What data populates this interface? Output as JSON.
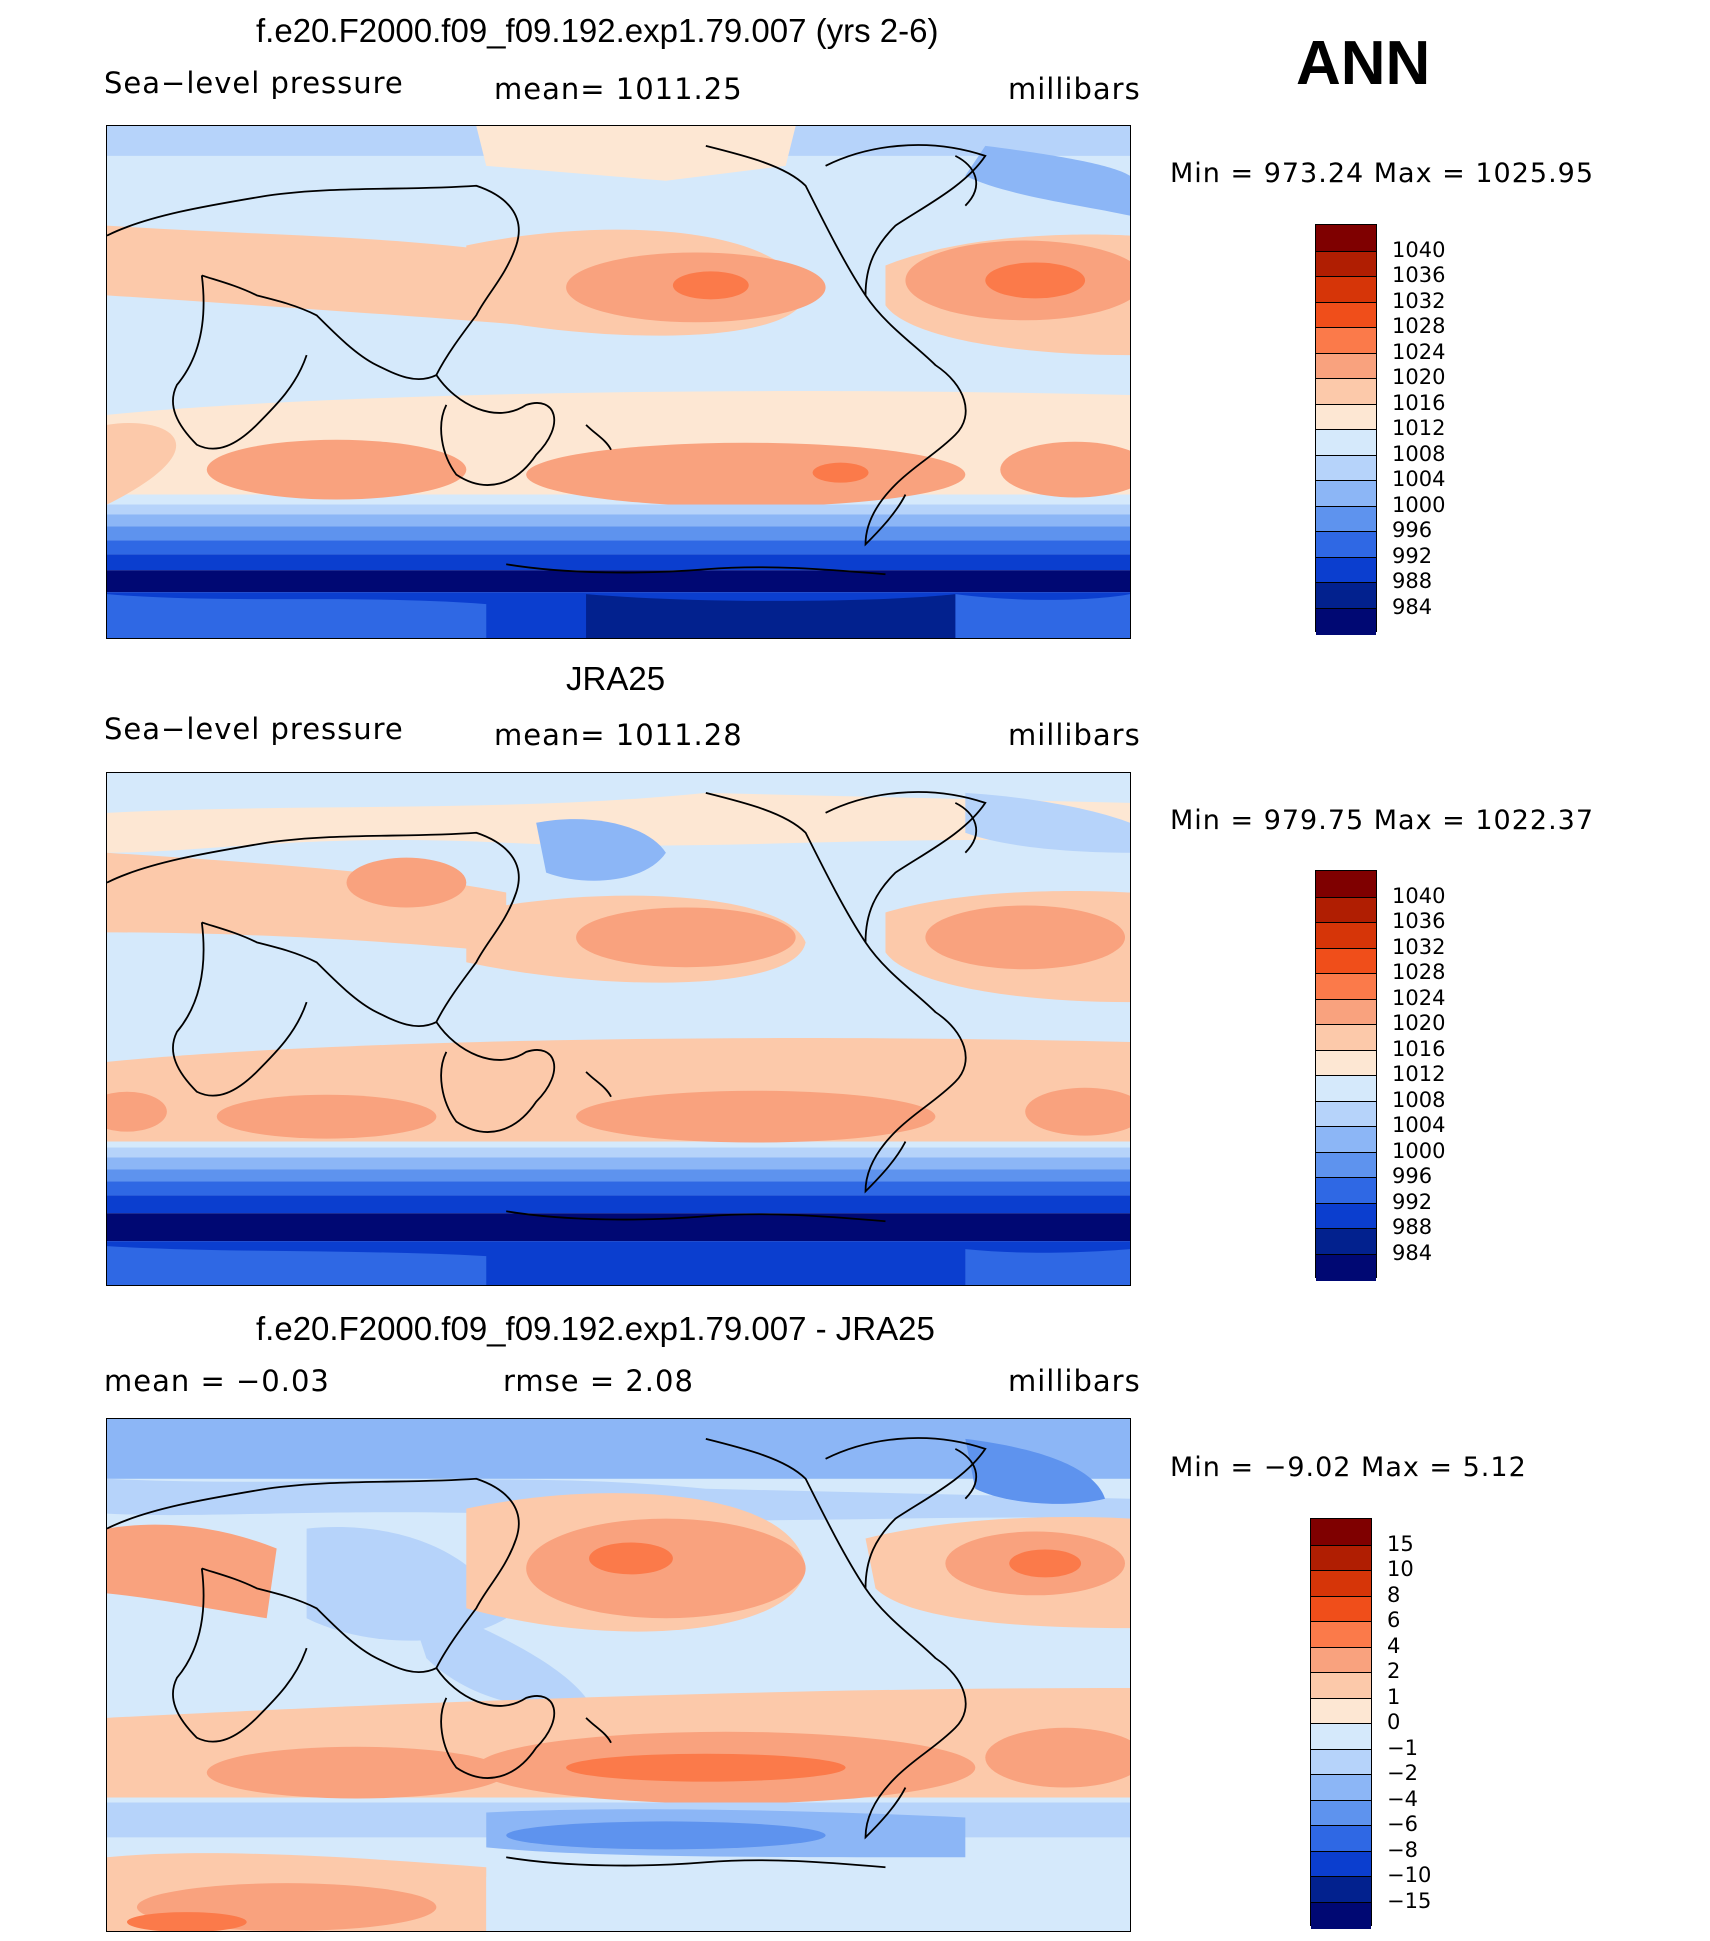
{
  "overall_label": "ANN",
  "panels": [
    {
      "title": "f.e20.F2000.f09_f09.192.exp1.79.007 (yrs 2-6)",
      "left": "Sea−level pressure",
      "center": "mean=  1011.25",
      "right": "millibars",
      "minmax": "Min  =  973.24  Max  =  1025.95",
      "colorbar": {
        "labels": [
          "1040",
          "1036",
          "1032",
          "1028",
          "1024",
          "1020",
          "1016",
          "1012",
          "1008",
          "1004",
          "1000",
          "996",
          "992",
          "988",
          "984"
        ],
        "colors": [
          "#7f0000",
          "#b01e02",
          "#d63508",
          "#f04e1a",
          "#fb7a4a",
          "#f9a27e",
          "#fcc9aa",
          "#fde7d3",
          "#d5e9fb",
          "#b6d3fa",
          "#8cb6f6",
          "#5e93ee",
          "#2f68e4",
          "#0b3ecf",
          "#02218e",
          "#000873"
        ]
      }
    },
    {
      "title": "JRA25",
      "left": "Sea−level pressure",
      "center": "mean=  1011.28",
      "right": "millibars",
      "minmax": "Min  =  979.75  Max  =  1022.37",
      "colorbar": {
        "labels": [
          "1040",
          "1036",
          "1032",
          "1028",
          "1024",
          "1020",
          "1016",
          "1012",
          "1008",
          "1004",
          "1000",
          "996",
          "992",
          "988",
          "984"
        ],
        "colors": [
          "#7f0000",
          "#b01e02",
          "#d63508",
          "#f04e1a",
          "#fb7a4a",
          "#f9a27e",
          "#fcc9aa",
          "#fde7d3",
          "#d5e9fb",
          "#b6d3fa",
          "#8cb6f6",
          "#5e93ee",
          "#2f68e4",
          "#0b3ecf",
          "#02218e",
          "#000873"
        ]
      }
    },
    {
      "title": "f.e20.F2000.f09_f09.192.exp1.79.007 - JRA25",
      "left": "mean  =    −0.03",
      "center": "rmse  =     2.08",
      "right": "millibars",
      "minmax": "Min  =    −9.02  Max  =      5.12",
      "colorbar": {
        "labels": [
          "15",
          "10",
          "8",
          "6",
          "4",
          "2",
          "1",
          "0",
          "−1",
          "−2",
          "−4",
          "−6",
          "−8",
          "−10",
          "−15"
        ],
        "colors": [
          "#7f0000",
          "#b01e02",
          "#d63508",
          "#f04e1a",
          "#fb7a4a",
          "#f9a27e",
          "#fcc9aa",
          "#fde7d3",
          "#d5e9fb",
          "#b6d3fa",
          "#8cb6f6",
          "#5e93ee",
          "#2f68e4",
          "#0b3ecf",
          "#02218e",
          "#000873"
        ]
      }
    }
  ]
}
